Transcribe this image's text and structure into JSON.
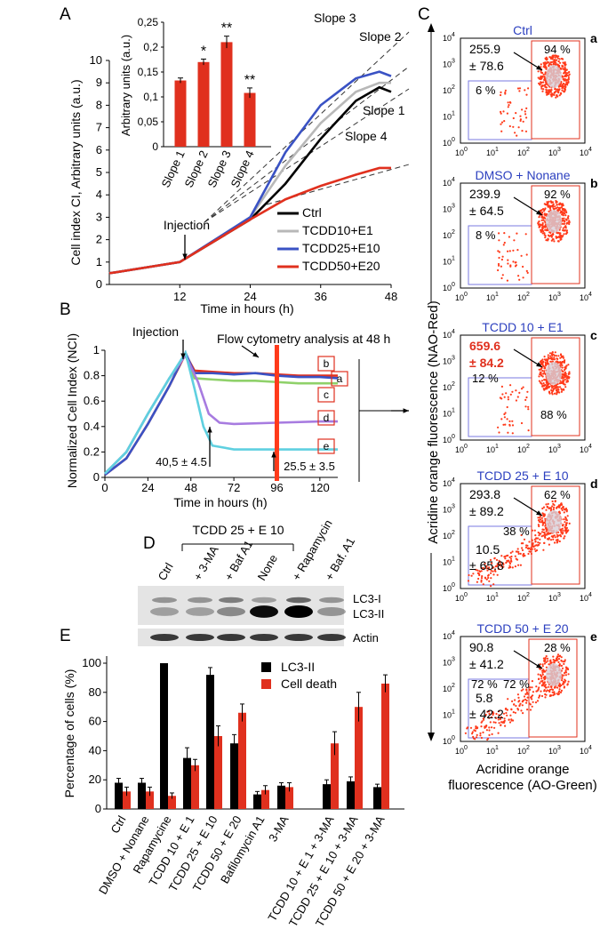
{
  "colors": {
    "red": "#e0301e",
    "black": "#000000",
    "grey": "#b8b8b8",
    "blue": "#3a52c4",
    "green": "#8fd16a",
    "purple": "#a77be0",
    "cyan": "#5fd0e0",
    "dark_red": "#ff3a1a",
    "flow_title": "#2b3fbf"
  },
  "panelA": {
    "letter": "A",
    "ylabel": "Cell index CI, Arbitrary units (a.u.)",
    "xlabel": "Time in hours (h)",
    "yticks": [
      "0",
      "1",
      "2",
      "3",
      "4",
      "5",
      "6",
      "7",
      "8",
      "9",
      "10"
    ],
    "xticks": [
      "12",
      "24",
      "36",
      "48"
    ],
    "injection": "Injection",
    "slopes": [
      "Slope 3",
      "Slope 2",
      "Slope 1",
      "Slope 4"
    ],
    "legend": [
      "Ctrl",
      "TCDD10+E1",
      "TCDD25+E10",
      "TCDD50+E20"
    ],
    "inset": {
      "ylabel": "Arbitrary units (a.u.)",
      "yticks": [
        "0",
        "0,05",
        "0,1",
        "0,15",
        "0,2",
        "0,25"
      ],
      "categories": [
        "Slope 1",
        "Slope 2",
        "Slope 3",
        "Slope 4"
      ],
      "values": [
        0.133,
        0.17,
        0.21,
        0.108
      ],
      "errors": [
        0.005,
        0.006,
        0.012,
        0.01
      ],
      "stars": [
        "",
        "*",
        "**",
        "**"
      ]
    }
  },
  "panelB": {
    "letter": "B",
    "ylabel": "Normalized Cell Index (NCI)",
    "xlabel": "Time in hours (h)",
    "yticks": [
      "0",
      "0.2",
      "0.4",
      "0.6",
      "0.8",
      "1"
    ],
    "xticks": [
      "0",
      "24",
      "48",
      "72",
      "96",
      "120"
    ],
    "injection": "Injection",
    "flow": "Flow cytometry analysis at 48 h",
    "ann1": "40,5  ± 4.5",
    "ann2": "25.5 ± 3.5",
    "box_labels": [
      "b",
      "a",
      "c",
      "d",
      "e"
    ]
  },
  "panelC": {
    "letter": "C",
    "ylabel": "Acridine orange fluorescence (NAO-Red)",
    "xlabel1": "Acridine orange",
    "xlabel2": "fluorescence (AO-Green)",
    "tick_exps": [
      "0",
      "1",
      "2",
      "3",
      "4"
    ],
    "plots": [
      {
        "title": "Ctrl",
        "letter": "a",
        "val1": "255.9",
        "val2": "± 78.6",
        "pct_hi": "94 %",
        "pct_lo": "6 %"
      },
      {
        "title": "DMSO + Nonane",
        "letter": "b",
        "val1": "239.9",
        "val2": "± 64.5",
        "pct_hi": "92 %",
        "pct_lo": "8 %"
      },
      {
        "title": "TCDD 10 + E1",
        "letter": "c",
        "val1": "659.6",
        "val2": "± 84.2",
        "pct_hi": "88 %",
        "pct_lo": "12 %"
      },
      {
        "title": "TCDD 25 + E 10",
        "letter": "d",
        "val1": "293.8",
        "val2": "± 89.2",
        "pct_hi": "62 %",
        "pct_lo": "38 %",
        "val3": "10.5",
        "val4": "± 65.8"
      },
      {
        "title": "TCDD 50 + E 20",
        "letter": "e",
        "val1": "90.8",
        "val2": "± 41.2",
        "pct_hi": "28 %",
        "pct_lo": "72 %",
        "pct_mid": "72 %",
        "val3": "5.8",
        "val4": "± 42.2"
      }
    ]
  },
  "panelD": {
    "letter": "D",
    "group": "TCDD 25 + E 10",
    "lanes": [
      "Ctrl",
      "+ 3-MA",
      "+ Baf A1",
      "None",
      "+ Rapamycin",
      "+ Baf. A1"
    ],
    "bands": [
      "LC3-I",
      "LC3-II",
      "Actin"
    ]
  },
  "panelE": {
    "letter": "E",
    "ylabel": "Percentage of  cells (%)",
    "yticks": [
      "0",
      "20",
      "40",
      "60",
      "80",
      "100"
    ],
    "legend": [
      "LC3-II",
      "Cell death"
    ]
  },
  "chart_data": [
    {
      "type": "bar",
      "title": "Panel A inset",
      "categories": [
        "Slope 1",
        "Slope 2",
        "Slope 3",
        "Slope 4"
      ],
      "values": [
        0.133,
        0.17,
        0.21,
        0.108
      ],
      "errors": [
        0.005,
        0.006,
        0.012,
        0.01
      ],
      "ylabel": "Arbitrary units (a.u.)",
      "ylim": [
        0,
        0.25
      ]
    },
    {
      "type": "bar",
      "title": "Panel E",
      "ylabel": "Percentage of  cells (%)",
      "ylim": [
        0,
        100
      ],
      "categories": [
        "Ctrl",
        "DMSO + Nonane",
        "Rapamycine",
        "TCDD 10 + E 1",
        "TCDD 25 + E 10",
        "TCDD 50 + E 20",
        "Bafilomycin A1",
        "3-MA",
        "TCDD 10 + E 1 + 3-MA",
        "TCDD 25 + E 10 + 3-MA",
        "TCDD 50 + E 20 + 3-MA"
      ],
      "gap_after_index": 7,
      "series": [
        {
          "name": "LC3-II",
          "values": [
            18,
            18,
            100,
            35,
            92,
            45,
            10,
            16,
            17,
            19,
            15
          ],
          "errors": [
            3,
            3,
            0,
            7,
            5,
            6,
            2,
            2,
            3,
            3,
            2
          ]
        },
        {
          "name": "Cell death",
          "values": [
            12,
            12,
            9,
            30,
            50,
            66,
            13,
            15,
            45,
            70,
            86
          ],
          "errors": [
            3,
            3,
            2,
            4,
            7,
            6,
            3,
            3,
            8,
            10,
            6
          ]
        }
      ]
    },
    {
      "type": "line",
      "title": "Panel B",
      "xlabel": "Time in hours (h)",
      "ylabel": "Normalized Cell Index (NCI)",
      "xlim": [
        0,
        130
      ],
      "ylim": [
        0,
        1
      ],
      "series": [
        {
          "name": "a",
          "x": [
            0,
            12,
            24,
            36,
            45,
            50,
            60,
            72,
            84,
            96,
            108,
            120,
            130
          ],
          "y": [
            0.02,
            0.15,
            0.42,
            0.72,
            0.97,
            0.84,
            0.83,
            0.82,
            0.82,
            0.81,
            0.8,
            0.8,
            0.8
          ]
        },
        {
          "name": "b",
          "x": [
            0,
            12,
            24,
            36,
            45,
            50,
            60,
            72,
            84,
            96,
            108,
            120,
            130
          ],
          "y": [
            0.02,
            0.15,
            0.42,
            0.72,
            0.98,
            0.82,
            0.82,
            0.81,
            0.82,
            0.8,
            0.79,
            0.79,
            0.78
          ]
        },
        {
          "name": "c",
          "x": [
            0,
            12,
            24,
            36,
            45,
            50,
            60,
            72,
            84,
            96,
            108,
            120,
            130
          ],
          "y": [
            0.03,
            0.2,
            0.5,
            0.78,
            0.96,
            0.78,
            0.77,
            0.76,
            0.76,
            0.75,
            0.74,
            0.74,
            0.74
          ]
        },
        {
          "name": "d",
          "x": [
            0,
            12,
            24,
            36,
            45,
            52,
            58,
            64,
            72,
            96,
            120,
            130
          ],
          "y": [
            0.03,
            0.2,
            0.5,
            0.78,
            0.96,
            0.75,
            0.5,
            0.43,
            0.42,
            0.43,
            0.44,
            0.44
          ]
        },
        {
          "name": "e",
          "x": [
            0,
            12,
            24,
            36,
            45,
            50,
            55,
            60,
            72,
            96,
            120,
            130
          ],
          "y": [
            0.03,
            0.2,
            0.5,
            0.78,
            0.98,
            0.7,
            0.4,
            0.25,
            0.22,
            0.22,
            0.22,
            0.22
          ]
        }
      ]
    },
    {
      "type": "line",
      "title": "Panel A",
      "xlabel": "Time in hours (h)",
      "ylabel": "Cell index CI, Arbitrary units (a.u.)",
      "xlim": [
        0,
        48
      ],
      "ylim": [
        0,
        10
      ],
      "series": [
        {
          "name": "Ctrl",
          "x": [
            0,
            12,
            24,
            30,
            36,
            42,
            46,
            48
          ],
          "y": [
            0.5,
            1.0,
            2.9,
            4.5,
            6.5,
            8.2,
            8.8,
            8.6
          ]
        },
        {
          "name": "TCDD10+E1",
          "x": [
            0,
            12,
            24,
            30,
            36,
            42,
            46,
            48
          ],
          "y": [
            0.5,
            1.0,
            3.0,
            5.3,
            7.2,
            8.6,
            9.0,
            9.0
          ]
        },
        {
          "name": "TCDD25+E10",
          "x": [
            0,
            12,
            24,
            30,
            36,
            42,
            46,
            48
          ],
          "y": [
            0.5,
            1.0,
            3.0,
            5.9,
            8.0,
            9.2,
            9.5,
            9.3
          ]
        },
        {
          "name": "TCDD50+E20",
          "x": [
            0,
            12,
            24,
            30,
            36,
            42,
            46,
            48
          ],
          "y": [
            0.5,
            1.0,
            2.9,
            3.8,
            4.4,
            4.9,
            5.2,
            5.2
          ]
        }
      ]
    }
  ]
}
